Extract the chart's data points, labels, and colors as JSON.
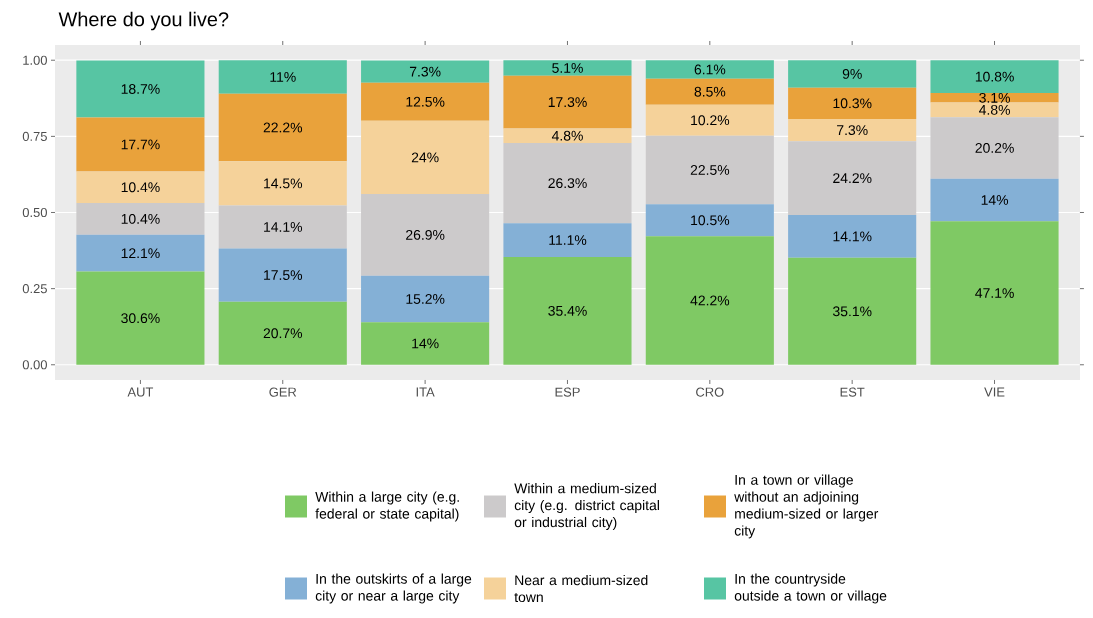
{
  "chart_data": {
    "type": "bar",
    "stacked": true,
    "title": "Where do you live?",
    "categories": [
      "AUT",
      "GER",
      "ITA",
      "ESP",
      "CRO",
      "EST",
      "VIE"
    ],
    "series": [
      {
        "name": "Within a large city (e.g. federal or state capital)",
        "color": "#7fc964",
        "values": [
          0.306,
          0.207,
          0.14,
          0.354,
          0.422,
          0.351,
          0.471
        ],
        "value_labels": [
          "30.6%",
          "20.7%",
          "14%",
          "35.4%",
          "42.2%",
          "35.1%",
          "47.1%"
        ]
      },
      {
        "name": "In the outskirts of a large city or near a large city",
        "color": "#84b0d6",
        "values": [
          0.121,
          0.175,
          0.152,
          0.111,
          0.105,
          0.141,
          0.14
        ],
        "value_labels": [
          "12.1%",
          "17.5%",
          "15.2%",
          "11.1%",
          "10.5%",
          "14.1%",
          "14%"
        ]
      },
      {
        "name": "Within a medium-sized city (e.g. district capital or industrial city)",
        "color": "#cccacb",
        "values": [
          0.104,
          0.141,
          0.269,
          0.263,
          0.225,
          0.242,
          0.202
        ],
        "value_labels": [
          "10.4%",
          "14.1%",
          "26.9%",
          "26.3%",
          "22.5%",
          "24.2%",
          "20.2%"
        ]
      },
      {
        "name": "Near a medium-sized town",
        "color": "#f5d29a",
        "values": [
          0.104,
          0.145,
          0.24,
          0.048,
          0.102,
          0.073,
          0.048
        ],
        "value_labels": [
          "10.4%",
          "14.5%",
          "24%",
          "4.8%",
          "10.2%",
          "7.3%",
          "4.8%"
        ]
      },
      {
        "name": "In a town or village without an adjoining medium-sized or larger city",
        "color": "#e9a23b",
        "values": [
          0.177,
          0.222,
          0.125,
          0.173,
          0.085,
          0.103,
          0.031
        ],
        "value_labels": [
          "17.7%",
          "22.2%",
          "12.5%",
          "17.3%",
          "8.5%",
          "10.3%",
          "3.1%"
        ]
      },
      {
        "name": "In the countryside outside a town or village",
        "color": "#57c5a3",
        "values": [
          0.187,
          0.11,
          0.073,
          0.051,
          0.061,
          0.09,
          0.108
        ],
        "value_labels": [
          "18.7%",
          "11%",
          "7.3%",
          "5.1%",
          "6.1%",
          "9%",
          "10.8%"
        ]
      }
    ],
    "ylim": [
      -0.05,
      1.05
    ],
    "yticks": [
      {
        "value": 0,
        "label": "0.00"
      },
      {
        "value": 0.25,
        "label": "0.25"
      },
      {
        "value": 0.5,
        "label": "0.50"
      },
      {
        "value": 0.75,
        "label": "0.75"
      },
      {
        "value": 1,
        "label": "1.00"
      }
    ],
    "grid": "y",
    "legend": "bottom"
  }
}
